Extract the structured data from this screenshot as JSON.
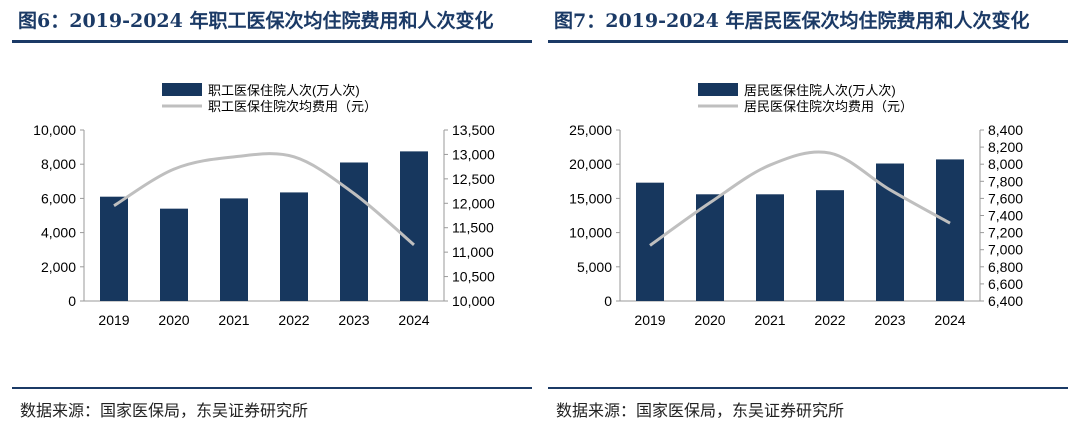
{
  "figures": [
    {
      "title": "图6：2019-2024 年职工医保次均住院费用和人次变化",
      "source": "数据来源：国家医保局，东吴证券研究所"
    },
    {
      "title": "图7：2019-2024 年居民医保次均住院费用和人次变化",
      "source": "数据来源：国家医保局，东吴证券研究所"
    }
  ],
  "colors": {
    "bar": "#17375e",
    "line": "#bfbfbf",
    "title": "#1b3a66"
  },
  "chart_data": [
    {
      "type": "bar+line",
      "categories": [
        "2019",
        "2020",
        "2021",
        "2022",
        "2023",
        "2024"
      ],
      "series": [
        {
          "name": "职工医保住院人次(万人次)",
          "type": "bar",
          "axis": "left",
          "values": [
            6100,
            5400,
            6000,
            6350,
            8100,
            8750
          ]
        },
        {
          "name": "职工医保住院次均费用（元）",
          "type": "line",
          "axis": "right",
          "values": [
            11950,
            12700,
            12950,
            12950,
            12200,
            11150
          ]
        }
      ],
      "y_left": {
        "min": 0,
        "max": 10000,
        "ticks": [
          "0",
          "2,000",
          "4,000",
          "6,000",
          "8,000",
          "10,000"
        ]
      },
      "y_right": {
        "min": 10000,
        "max": 13500,
        "ticks": [
          "10,000",
          "10,500",
          "11,000",
          "11,500",
          "12,000",
          "12,500",
          "13,000",
          "13,500"
        ]
      },
      "grid": false,
      "legend": "top-center"
    },
    {
      "type": "bar+line",
      "categories": [
        "2019",
        "2020",
        "2021",
        "2022",
        "2023",
        "2024"
      ],
      "series": [
        {
          "name": "居民医保住院人次(万人次)",
          "type": "bar",
          "axis": "left",
          "values": [
            17300,
            15600,
            15600,
            16200,
            20100,
            20700
          ]
        },
        {
          "name": "居民医保住院次均费用（元）",
          "type": "line",
          "axis": "right",
          "values": [
            7050,
            7550,
            7990,
            8130,
            7700,
            7310
          ]
        }
      ],
      "y_left": {
        "min": 0,
        "max": 25000,
        "ticks": [
          "0",
          "5,000",
          "10,000",
          "15,000",
          "20,000",
          "25,000"
        ]
      },
      "y_right": {
        "min": 6400,
        "max": 8400,
        "ticks": [
          "6,400",
          "6,600",
          "6,800",
          "7,000",
          "7,200",
          "7,400",
          "7,600",
          "7,800",
          "8,000",
          "8,200",
          "8,400"
        ]
      },
      "grid": false,
      "legend": "top-center"
    }
  ]
}
